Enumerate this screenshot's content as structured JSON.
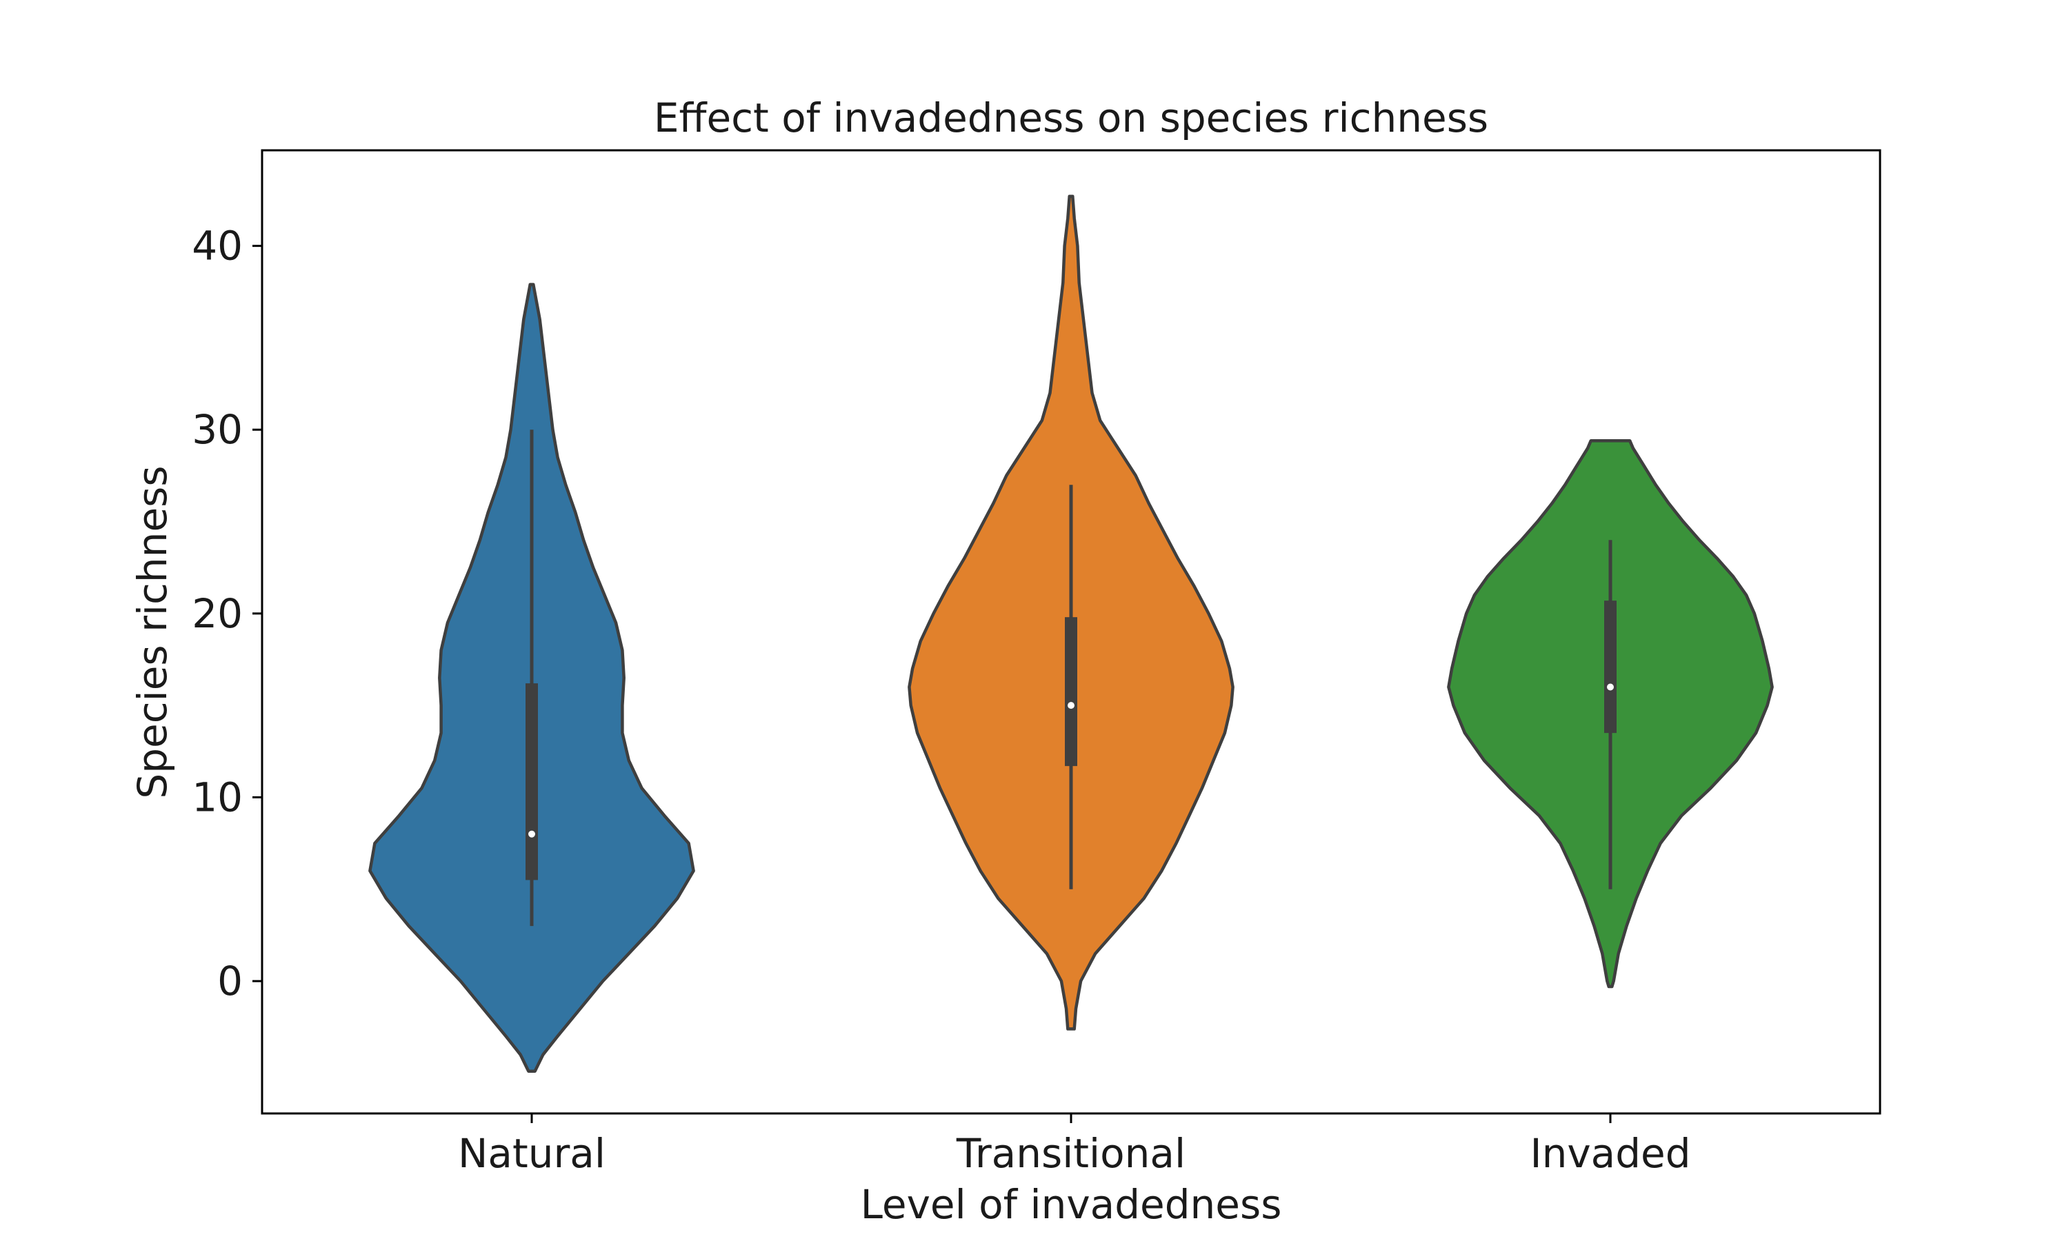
{
  "chart_data": {
    "type": "violin",
    "title": "Effect of invadedness on species richness",
    "xlabel": "Level of invadedness",
    "ylabel": "Species richness",
    "categories": [
      "Natural",
      "Transitional",
      "Invaded"
    ],
    "ylim": [
      -7.2,
      45.2
    ],
    "yticks": [
      0,
      10,
      20,
      30,
      40
    ],
    "yticklabels": [
      "0",
      "10",
      "20",
      "30",
      "40"
    ],
    "grid": false,
    "colors": {
      "Natural": "#3274a1",
      "Transitional": "#e1812c",
      "Invaded": "#3a923a",
      "outline": "#3f3f3f",
      "box": "#3f3f3f",
      "median": "#ffffff"
    },
    "series": [
      {
        "category": "Natural",
        "min": 3,
        "q1": 5.5,
        "median": 8,
        "q3": 16.2,
        "max": 30,
        "kde_range": [
          -4.9,
          37.9
        ],
        "density_profile": [
          [
            -4.9,
            0.02
          ],
          [
            -4.0,
            0.07
          ],
          [
            -3.0,
            0.16
          ],
          [
            -1.5,
            0.3
          ],
          [
            0,
            0.44
          ],
          [
            1.5,
            0.6
          ],
          [
            3,
            0.76
          ],
          [
            4.5,
            0.9
          ],
          [
            6,
            1.0
          ],
          [
            7.5,
            0.97
          ],
          [
            9,
            0.82
          ],
          [
            10.5,
            0.68
          ],
          [
            12,
            0.6
          ],
          [
            13.5,
            0.56
          ],
          [
            15,
            0.56
          ],
          [
            16.5,
            0.57
          ],
          [
            18,
            0.56
          ],
          [
            19.5,
            0.52
          ],
          [
            21,
            0.45
          ],
          [
            22.5,
            0.38
          ],
          [
            24,
            0.32
          ],
          [
            25.5,
            0.27
          ],
          [
            27,
            0.21
          ],
          [
            28.5,
            0.16
          ],
          [
            30,
            0.13
          ],
          [
            31.5,
            0.11
          ],
          [
            33,
            0.09
          ],
          [
            34.5,
            0.07
          ],
          [
            36,
            0.05
          ],
          [
            37.9,
            0.01
          ]
        ]
      },
      {
        "category": "Transitional",
        "min": 5,
        "q1": 11.7,
        "median": 15,
        "q3": 19.8,
        "max": 27,
        "kde_range": [
          -2.6,
          42.7
        ],
        "density_profile": [
          [
            -2.6,
            0.02
          ],
          [
            -1.5,
            0.03
          ],
          [
            0,
            0.06
          ],
          [
            1.5,
            0.15
          ],
          [
            3,
            0.3
          ],
          [
            4.5,
            0.45
          ],
          [
            6,
            0.56
          ],
          [
            7.5,
            0.65
          ],
          [
            9,
            0.73
          ],
          [
            10.5,
            0.81
          ],
          [
            12,
            0.88
          ],
          [
            13.5,
            0.95
          ],
          [
            15,
            0.99
          ],
          [
            16,
            1.0
          ],
          [
            17,
            0.98
          ],
          [
            18.5,
            0.93
          ],
          [
            20,
            0.85
          ],
          [
            21.5,
            0.76
          ],
          [
            23,
            0.66
          ],
          [
            24.5,
            0.57
          ],
          [
            26,
            0.48
          ],
          [
            27.5,
            0.4
          ],
          [
            29,
            0.29
          ],
          [
            30.5,
            0.18
          ],
          [
            32,
            0.13
          ],
          [
            33.5,
            0.11
          ],
          [
            35,
            0.09
          ],
          [
            36.5,
            0.07
          ],
          [
            38,
            0.05
          ],
          [
            40,
            0.04
          ],
          [
            41.5,
            0.02
          ],
          [
            42.7,
            0.01
          ]
        ]
      },
      {
        "category": "Invaded",
        "min": 5,
        "q1": 13.5,
        "median": 16,
        "q3": 20.7,
        "max": 24,
        "kde_range": [
          -0.3,
          29.4
        ],
        "density_profile": [
          [
            -0.3,
            0.01
          ],
          [
            0,
            0.02
          ],
          [
            1.5,
            0.05
          ],
          [
            3,
            0.1
          ],
          [
            4.5,
            0.16
          ],
          [
            6,
            0.23
          ],
          [
            7.5,
            0.31
          ],
          [
            9,
            0.44
          ],
          [
            10.5,
            0.62
          ],
          [
            12,
            0.78
          ],
          [
            13.5,
            0.9
          ],
          [
            15,
            0.97
          ],
          [
            16,
            1.0
          ],
          [
            17,
            0.98
          ],
          [
            18.5,
            0.94
          ],
          [
            20,
            0.89
          ],
          [
            21,
            0.84
          ],
          [
            22,
            0.76
          ],
          [
            23,
            0.66
          ],
          [
            24,
            0.55
          ],
          [
            25,
            0.45
          ],
          [
            26,
            0.36
          ],
          [
            27,
            0.28
          ],
          [
            28,
            0.21
          ],
          [
            29,
            0.14
          ],
          [
            29.4,
            0.12
          ]
        ]
      }
    ]
  }
}
